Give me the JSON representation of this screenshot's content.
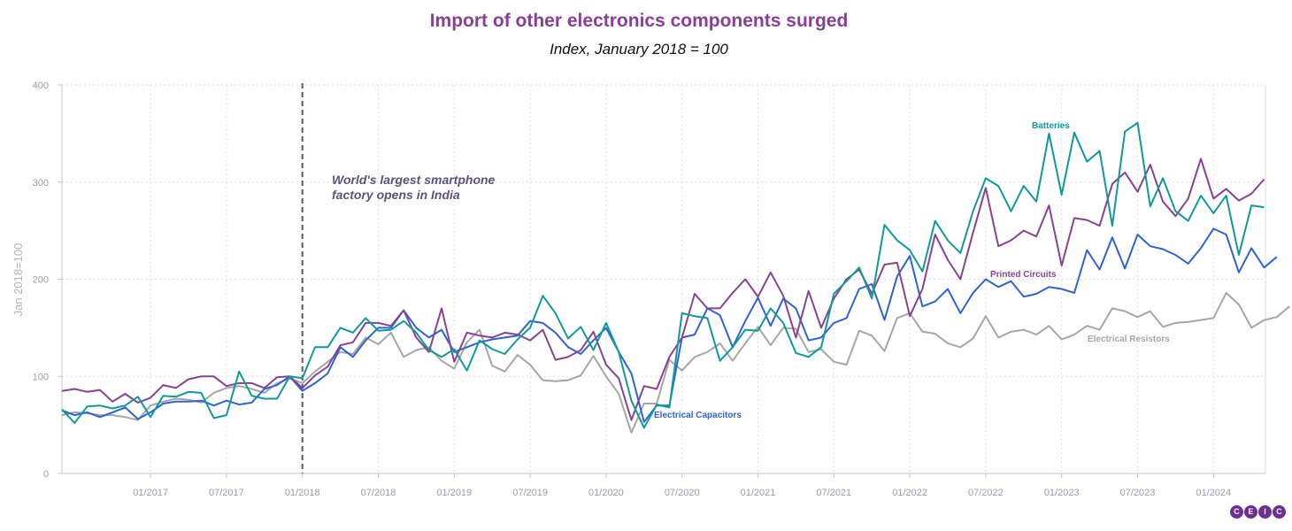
{
  "chart_data": {
    "type": "line",
    "title": "Import of other electronics components surged",
    "subtitle": "Index, January 2018 = 100",
    "ylabel": "Jan 2018=100",
    "ylim": [
      0,
      400
    ],
    "yticks": [
      "0",
      "100",
      "200",
      "300",
      "400"
    ],
    "xticks": [
      {
        "label": "01/2017",
        "index": 7
      },
      {
        "label": "07/2017",
        "index": 13
      },
      {
        "label": "01/2018",
        "index": 19
      },
      {
        "label": "07/2018",
        "index": 25
      },
      {
        "label": "01/2019",
        "index": 31
      },
      {
        "label": "07/2019",
        "index": 37
      },
      {
        "label": "01/2020",
        "index": 43
      },
      {
        "label": "07/2020",
        "index": 49
      },
      {
        "label": "01/2021",
        "index": 55
      },
      {
        "label": "07/2021",
        "index": 61
      },
      {
        "label": "01/2022",
        "index": 67
      },
      {
        "label": "07/2022",
        "index": 73
      },
      {
        "label": "01/2023",
        "index": 79
      },
      {
        "label": "07/2023",
        "index": 85
      },
      {
        "label": "01/2024",
        "index": 91
      }
    ],
    "x_start": "06/2016",
    "x_end": "11/2024",
    "grid": true,
    "annotation": {
      "text_line1": "World's largest smartphone",
      "text_line2": "factory opens in India",
      "x_index": 19
    },
    "series": [
      {
        "name": "Batteries",
        "color": "#11999a",
        "values": [
          66,
          52,
          69,
          70,
          67,
          70,
          79,
          58,
          80,
          79,
          84,
          83,
          57,
          60,
          105,
          80,
          77,
          77,
          100,
          98,
          130,
          130,
          150,
          145,
          160,
          147,
          148,
          157,
          145,
          127,
          120,
          128,
          106,
          137,
          128,
          123,
          138,
          150,
          183,
          165,
          139,
          151,
          127,
          155,
          125,
          75,
          47,
          71,
          68,
          165,
          162,
          160,
          116,
          130,
          148,
          147,
          170,
          155,
          124,
          120,
          130,
          185,
          198,
          212,
          180,
          256,
          240,
          230,
          208,
          260,
          240,
          227,
          270,
          304,
          296,
          270,
          296,
          280,
          350,
          287,
          351,
          321,
          332,
          255,
          352,
          361,
          275,
          304,
          270,
          260,
          286,
          268,
          286,
          225,
          276,
          274
        ]
      },
      {
        "name": "Printed Circuits",
        "color": "#874391",
        "values": [
          85,
          87,
          84,
          86,
          74,
          82,
          73,
          78,
          91,
          88,
          97,
          100,
          100,
          90,
          93,
          93,
          88,
          99,
          100,
          88,
          101,
          110,
          132,
          135,
          155,
          155,
          152,
          168,
          140,
          125,
          170,
          115,
          145,
          142,
          140,
          145,
          143,
          137,
          148,
          117,
          120,
          127,
          146,
          112,
          98,
          55,
          90,
          87,
          120,
          140,
          185,
          170,
          170,
          186,
          200,
          182,
          207,
          183,
          140,
          188,
          150,
          180,
          200,
          210,
          185,
          215,
          217,
          162,
          190,
          246,
          220,
          200,
          248,
          294,
          234,
          240,
          250,
          244,
          276,
          214,
          263,
          261,
          255,
          298,
          310,
          290,
          318,
          280,
          265,
          283,
          324,
          283,
          293,
          281,
          288,
          303
        ]
      },
      {
        "name": "Electrical Capacitors",
        "color": "#2f63cf",
        "values": [
          65,
          60,
          63,
          58,
          63,
          68,
          56,
          63,
          72,
          74,
          74,
          75,
          70,
          75,
          71,
          73,
          87,
          91,
          100,
          85,
          93,
          103,
          130,
          120,
          137,
          150,
          150,
          168,
          150,
          140,
          148,
          125,
          130,
          135,
          138,
          140,
          142,
          157,
          155,
          145,
          130,
          123,
          137,
          150,
          125,
          103,
          53,
          70,
          70,
          140,
          143,
          170,
          163,
          130,
          157,
          181,
          152,
          180,
          170,
          137,
          140,
          155,
          160,
          190,
          195,
          158,
          203,
          224,
          172,
          177,
          190,
          165,
          186,
          200,
          192,
          198,
          182,
          185,
          192,
          190,
          186,
          230,
          210,
          243,
          211,
          246,
          234,
          231,
          225,
          216,
          232,
          252,
          246,
          207,
          232,
          212,
          223
        ]
      },
      {
        "name": "Electrical Resistors",
        "color": "#a6a6a6",
        "values": [
          60,
          63,
          62,
          60,
          60,
          58,
          55,
          70,
          74,
          77,
          76,
          73,
          83,
          88,
          90,
          87,
          83,
          93,
          98,
          93,
          105,
          115,
          125,
          123,
          140,
          133,
          145,
          120,
          127,
          130,
          116,
          108,
          135,
          148,
          111,
          105,
          122,
          112,
          96,
          95,
          96,
          101,
          121,
          100,
          82,
          42,
          72,
          72,
          117,
          106,
          120,
          125,
          134,
          116,
          134,
          151,
          132,
          150,
          149,
          125,
          128,
          115,
          112,
          147,
          142,
          126,
          160,
          165,
          146,
          144,
          134,
          130,
          139,
          162,
          140,
          146,
          148,
          143,
          152,
          138,
          143,
          152,
          148,
          170,
          167,
          161,
          167,
          151,
          155,
          156,
          158,
          160,
          186,
          174,
          150,
          158,
          161,
          172
        ]
      }
    ],
    "series_labels": [
      {
        "text": "Batteries",
        "series": 0
      },
      {
        "text": "Printed Circuits",
        "series": 1
      },
      {
        "text": "Electrical Capacitors",
        "series": 2
      },
      {
        "text": "Electrical Resistors",
        "series": 3
      }
    ]
  },
  "logo": [
    "C",
    "E",
    "I",
    "C"
  ]
}
